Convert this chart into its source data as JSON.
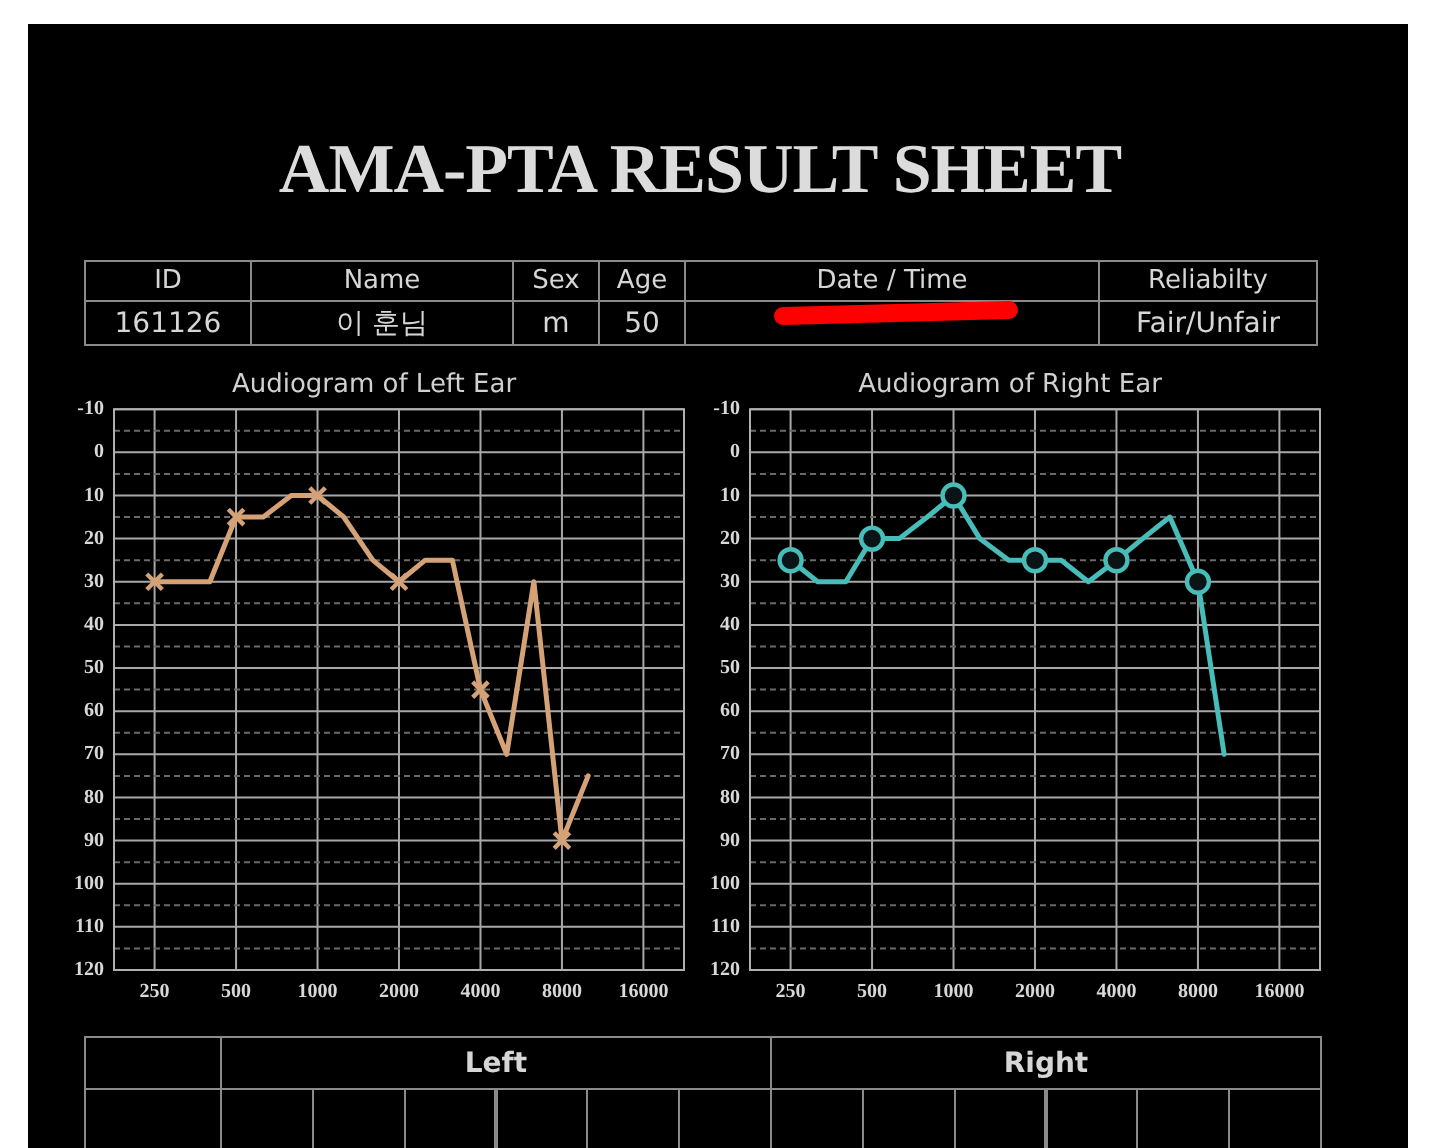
{
  "chart_data": [
    {
      "type": "other",
      "title": "AMA-PTA RESULT SHEET",
      "categories": [
        "ID",
        "Name",
        "Sex",
        "Age",
        "Date / Time",
        "Reliabilty"
      ],
      "cell_labels": [
        [
          "161126",
          "이 훈님",
          "m",
          "50",
          null,
          "Fair/Unfair"
        ]
      ]
    },
    {
      "type": "line",
      "title": "Audiogram of Left Ear",
      "log": "x",
      "grid": true,
      "series": [
        {
          "type": "line",
          "color": "#d4a276",
          "marker": "none",
          "x": [
            250,
            315,
            400,
            500,
            630,
            800,
            1000,
            1250,
            1600,
            2000,
            2500,
            3150,
            4000,
            5000,
            6300,
            8000,
            10000
          ],
          "values": [
            30,
            30,
            30,
            15,
            15,
            10,
            10,
            15,
            25,
            30,
            25,
            25,
            55,
            70,
            30,
            90,
            75
          ]
        },
        {
          "type": "scatter",
          "color": "#d4a276",
          "marker": "cross",
          "x": [
            250,
            500,
            1000,
            2000,
            4000,
            8000
          ],
          "values": [
            30,
            15,
            10,
            30,
            55,
            90
          ]
        }
      ],
      "xlim": [
        177,
        22600
      ],
      "xticks": [
        250,
        500,
        1000,
        2000,
        4000,
        8000,
        16000
      ],
      "ylim": [
        120,
        -10
      ],
      "yticks": [
        -10,
        {
          "value": -5,
          "label": null
        },
        0,
        {
          "value": 5,
          "label": null
        },
        10,
        {
          "value": 15,
          "label": null
        },
        20,
        {
          "value": 25,
          "label": null
        },
        30,
        {
          "value": 35,
          "label": null
        },
        40,
        {
          "value": 45,
          "label": null
        },
        50,
        {
          "value": 55,
          "label": null
        },
        60,
        {
          "value": 65,
          "label": null
        },
        70,
        {
          "value": 75,
          "label": null
        },
        80,
        {
          "value": 85,
          "label": null
        },
        90,
        {
          "value": 95,
          "label": null
        },
        100,
        {
          "value": 105,
          "label": null
        },
        110,
        {
          "value": 115,
          "label": null
        },
        120
      ]
    },
    {
      "type": "line",
      "title": "Audiogram of Right Ear",
      "log": "x",
      "grid": true,
      "series": [
        {
          "type": "line",
          "color": "#47bcb8",
          "marker": "none",
          "x": [
            250,
            315,
            400,
            500,
            630,
            800,
            1000,
            1250,
            1600,
            2000,
            2500,
            3150,
            4000,
            5000,
            6300,
            8000,
            10000
          ],
          "values": [
            25,
            30,
            30,
            20,
            20,
            15,
            10,
            20,
            25,
            25,
            25,
            30,
            25,
            20,
            15,
            30,
            70
          ]
        },
        {
          "type": "scatter",
          "color": "#47bcb8",
          "marker": "circle",
          "x": [
            250,
            500,
            1000,
            2000,
            4000,
            8000
          ],
          "values": [
            25,
            20,
            10,
            25,
            25,
            30
          ]
        }
      ],
      "xlim": [
        177,
        22600
      ],
      "xticks": [
        250,
        500,
        1000,
        2000,
        4000,
        8000,
        16000
      ],
      "ylim": [
        120,
        -10
      ],
      "yticks": [
        -10,
        {
          "value": -5,
          "label": null
        },
        0,
        {
          "value": 5,
          "label": null
        },
        10,
        {
          "value": 15,
          "label": null
        },
        20,
        {
          "value": 25,
          "label": null
        },
        30,
        {
          "value": 35,
          "label": null
        },
        40,
        {
          "value": 45,
          "label": null
        },
        50,
        {
          "value": 55,
          "label": null
        },
        60,
        {
          "value": 65,
          "label": null
        },
        70,
        {
          "value": 75,
          "label": null
        },
        80,
        {
          "value": 85,
          "label": null
        },
        90,
        {
          "value": 95,
          "label": null
        },
        100,
        {
          "value": 105,
          "label": null
        },
        110,
        {
          "value": 115,
          "label": null
        },
        120
      ]
    },
    {
      "type": "other",
      "annotations": [
        "Left",
        "Right"
      ]
    }
  ]
}
